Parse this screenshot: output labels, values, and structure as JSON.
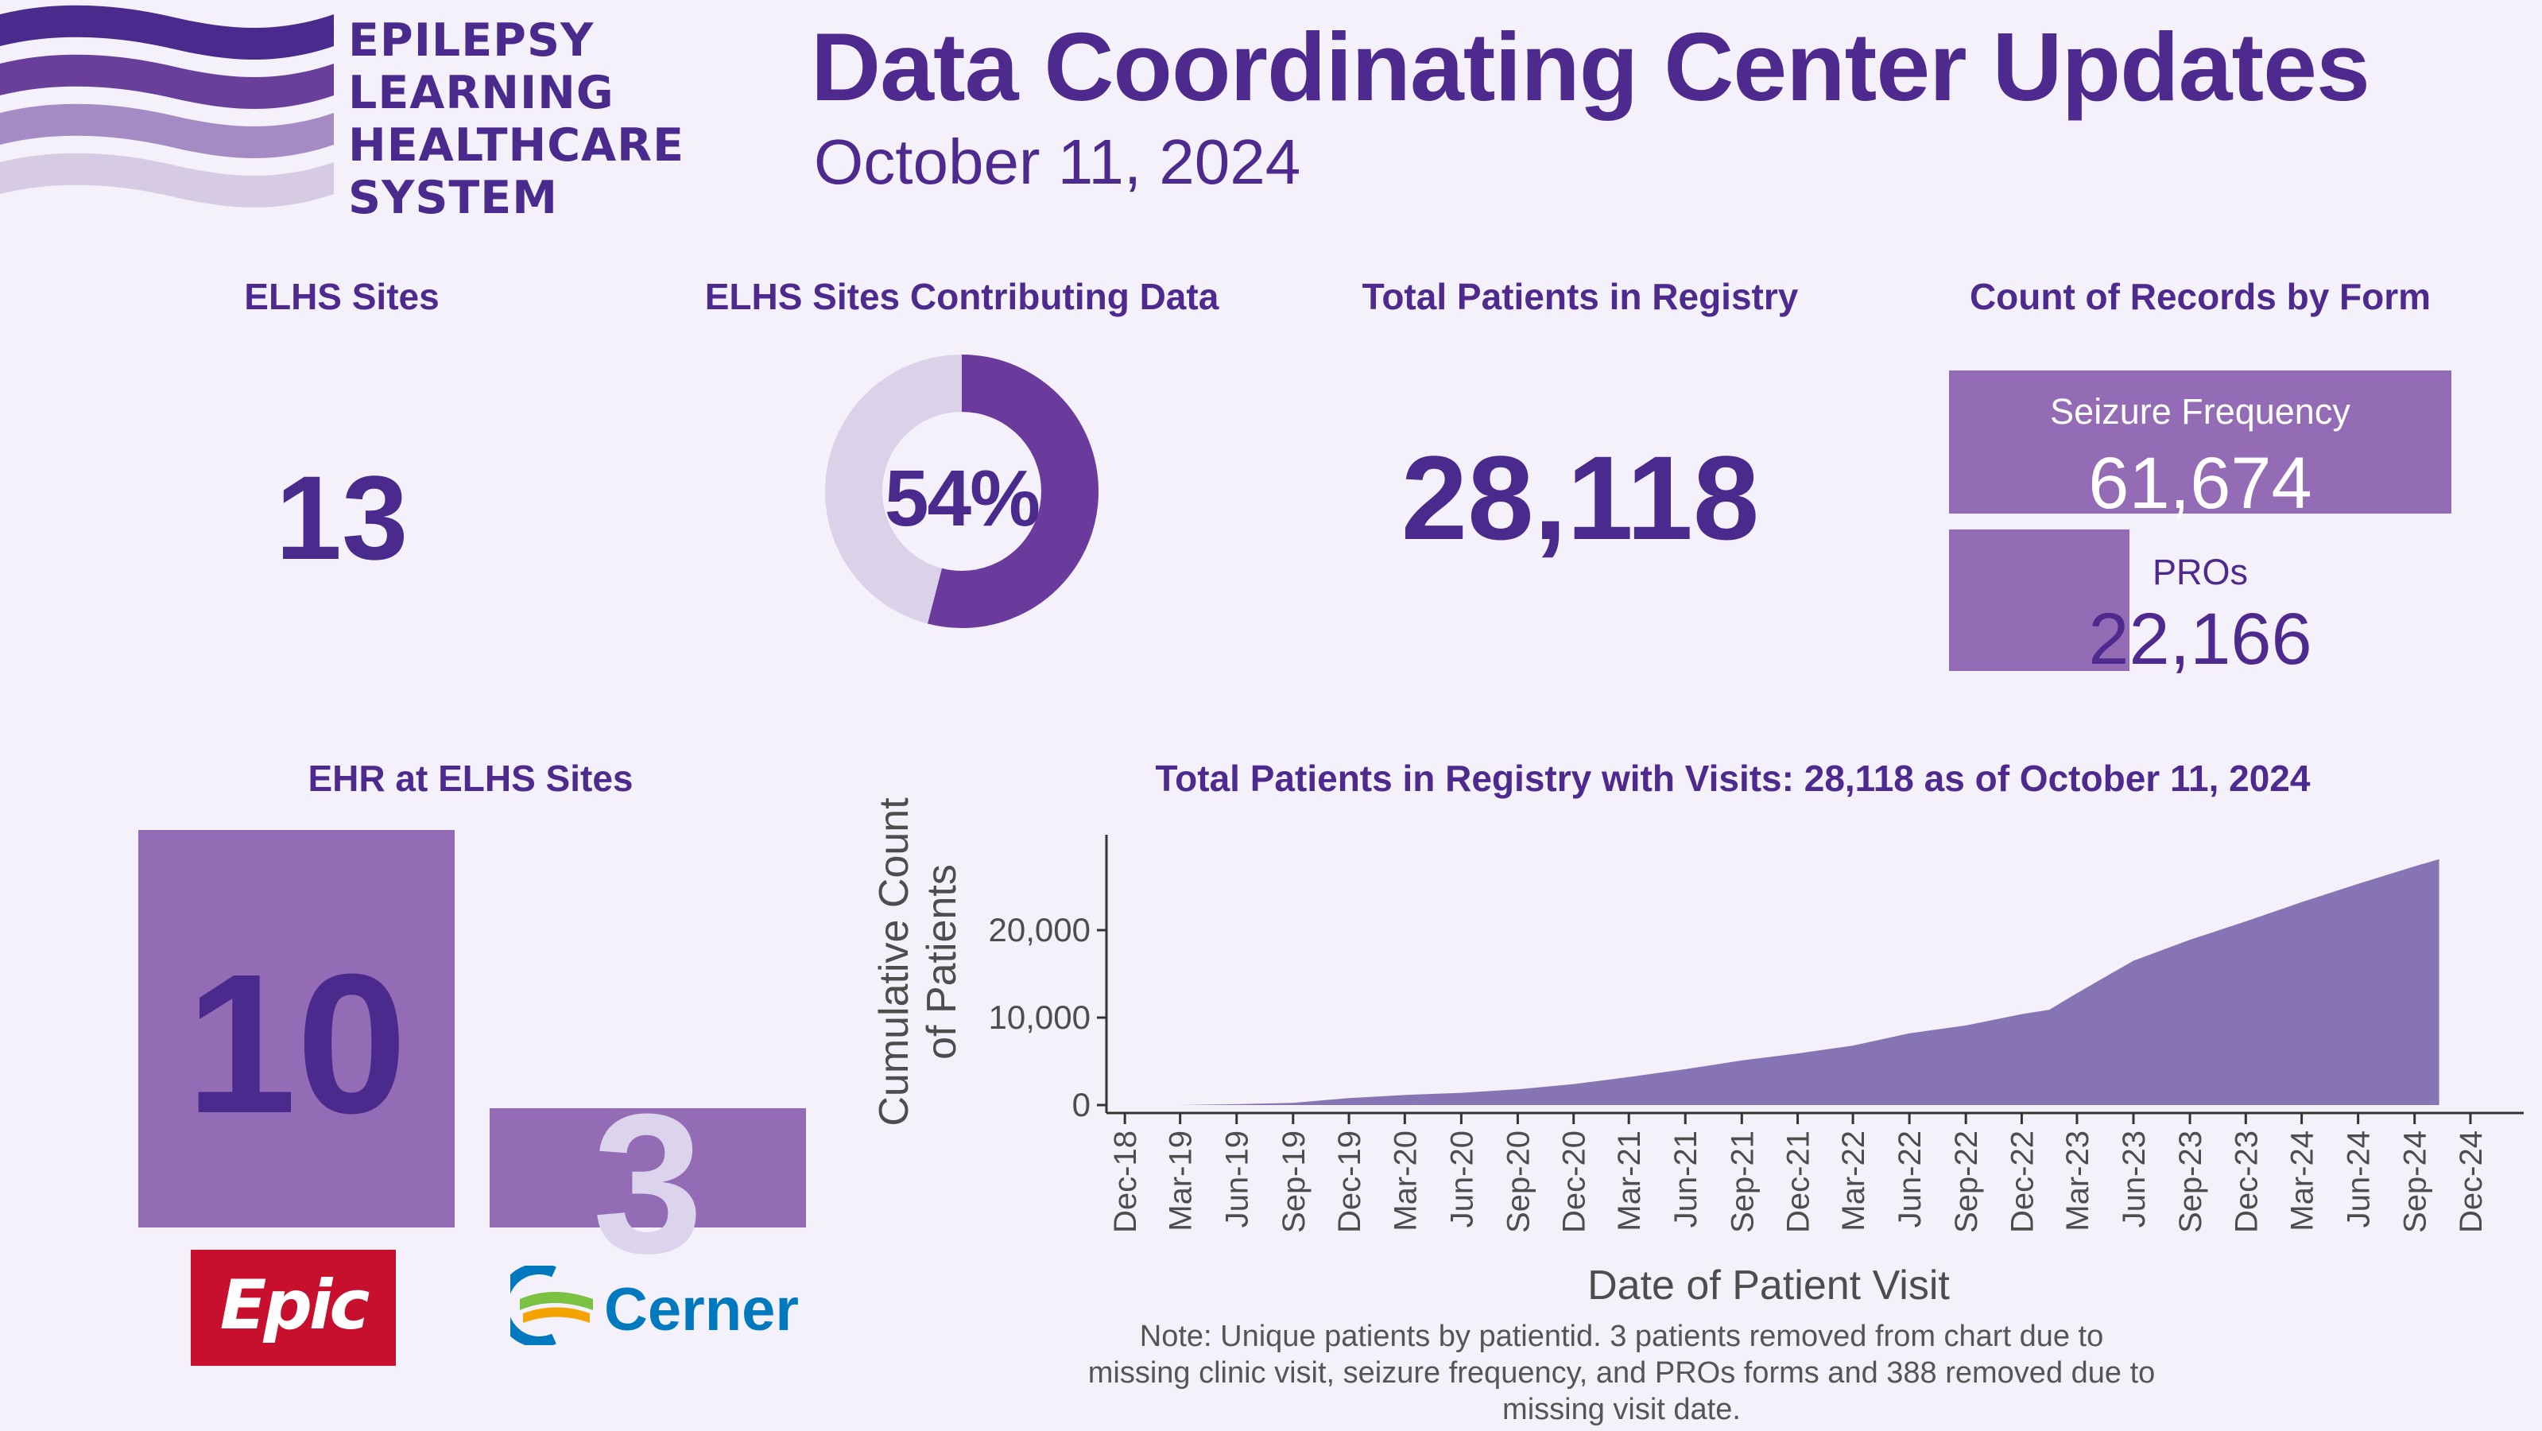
{
  "header": {
    "logo_lines": [
      "EPILEPSY",
      "LEARNING",
      "HEALTHCARE",
      "SYSTEM"
    ],
    "title": "Data Coordinating Center Updates",
    "date": "October 11, 2024"
  },
  "colors": {
    "primary": "#4e2a8e",
    "bar": "#946bb5",
    "donut_light": "#dbd2ea",
    "donut_dark": "#6a3a9c",
    "area": "#8674b4",
    "background": "#f4f1fa",
    "epic_red": "#c8102e",
    "cerner_blue": "#0079be"
  },
  "kpis": {
    "sites": {
      "title": "ELHS Sites",
      "value": "13"
    },
    "contributing": {
      "title": "ELHS Sites Contributing Data",
      "value": "54%",
      "fraction": 0.54
    },
    "patients": {
      "title": "Total Patients in Registry",
      "value": "28,118"
    },
    "records": {
      "title": "Count of Records by Form",
      "forms": [
        {
          "label": "Seizure Frequency",
          "value": "61,674",
          "count": 61674
        },
        {
          "label": "PROs",
          "value": "22,166",
          "count": 22166
        }
      ]
    }
  },
  "ehr": {
    "title": "EHR at ELHS Sites",
    "vendors": [
      {
        "name": "Epic",
        "count": 10,
        "value": "10"
      },
      {
        "name": "Cerner",
        "count": 3,
        "value": "3"
      }
    ]
  },
  "chart_data": {
    "type": "area",
    "title": "Total Patients in Registry with Visits: 28,118 as of October 11, 2024",
    "xlabel": "Date of Patient Visit",
    "ylabel": "Cumulative Count of Patients",
    "x_ticks": [
      "Dec-18",
      "Mar-19",
      "Jun-19",
      "Sep-19",
      "Dec-19",
      "Mar-20",
      "Jun-20",
      "Sep-20",
      "Dec-20",
      "Mar-21",
      "Jun-21",
      "Sep-21",
      "Dec-21",
      "Mar-22",
      "Jun-22",
      "Sep-22",
      "Dec-22",
      "Mar-23",
      "Jun-23",
      "Sep-23",
      "Dec-23",
      "Mar-24",
      "Jun-24",
      "Sep-24",
      "Dec-24"
    ],
    "y_ticks": [
      "0",
      "10,000",
      "20,000"
    ],
    "y_tick_values": [
      0,
      10000,
      20000
    ],
    "ylim": [
      0,
      30000
    ],
    "x_range": [
      "2018-11-01",
      "2025-01-05"
    ],
    "grid": false,
    "legend": "none",
    "series": [
      {
        "points": [
          [
            "2019-03-01",
            0
          ],
          [
            "2019-06-01",
            100
          ],
          [
            "2019-09-01",
            250
          ],
          [
            "2019-12-01",
            800
          ],
          [
            "2020-03-01",
            1150
          ],
          [
            "2020-06-01",
            1400
          ],
          [
            "2020-09-01",
            1800
          ],
          [
            "2020-12-01",
            2400
          ],
          [
            "2021-03-01",
            3200
          ],
          [
            "2021-06-01",
            4100
          ],
          [
            "2021-09-01",
            5100
          ],
          [
            "2021-12-01",
            5900
          ],
          [
            "2022-03-01",
            6800
          ],
          [
            "2022-06-01",
            8200
          ],
          [
            "2022-09-01",
            9100
          ],
          [
            "2022-12-01",
            10400
          ],
          [
            "2023-01-15",
            10900
          ],
          [
            "2023-03-01",
            12800
          ],
          [
            "2023-06-01",
            16500
          ],
          [
            "2023-09-01",
            18900
          ],
          [
            "2023-12-01",
            21000
          ],
          [
            "2024-03-01",
            23200
          ],
          [
            "2024-06-01",
            25300
          ],
          [
            "2024-09-01",
            27300
          ],
          [
            "2024-10-11",
            28118
          ]
        ]
      }
    ]
  },
  "note": "Note: Unique patients by patientid. 3 patients removed from chart due to missing clinic visit, seizure frequency, and PROs forms and 388 removed due to missing visit date."
}
